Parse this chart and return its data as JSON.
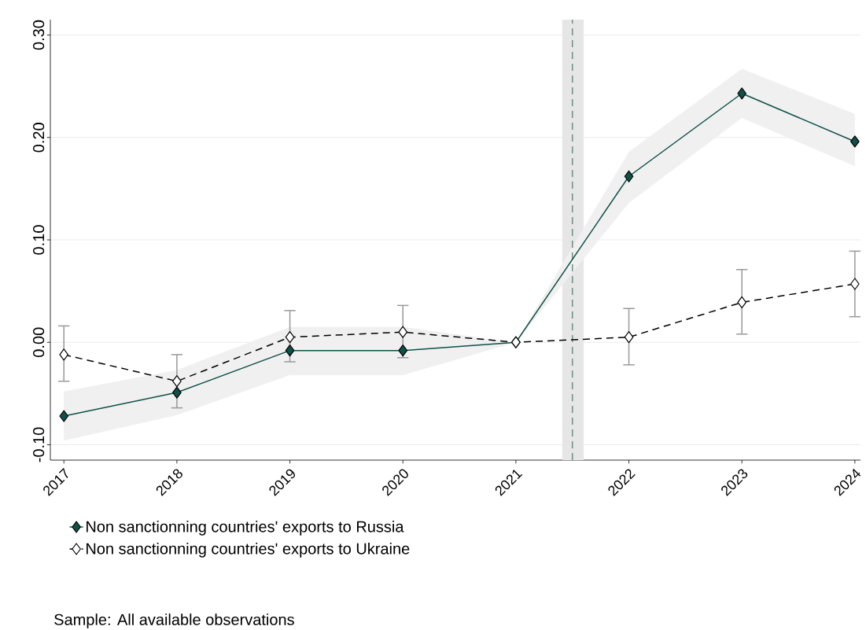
{
  "chart_data": {
    "type": "line",
    "x": [
      2017,
      2018,
      2019,
      2020,
      2021,
      2022,
      2023,
      2024
    ],
    "series": [
      {
        "name": "Non sanctionning countries' exports to Russia",
        "color": "#0f5048",
        "line_style": "solid",
        "values": [
          -0.072,
          -0.049,
          -0.008,
          -0.008,
          0.0,
          0.162,
          0.243,
          0.196
        ],
        "lower": [
          -0.096,
          -0.071,
          -0.032,
          -0.032,
          0.0,
          0.136,
          0.219,
          0.172
        ],
        "upper": [
          -0.048,
          -0.027,
          0.015,
          0.015,
          0.0,
          0.186,
          0.267,
          0.223
        ]
      },
      {
        "name": "Non sanctionning countries' exports to Ukraine",
        "color": "#000000",
        "line_style": "dashed",
        "values": [
          -0.012,
          -0.038,
          0.005,
          0.01,
          0.0,
          0.005,
          0.039,
          0.057
        ],
        "errors": [
          [
            -0.038,
            0.016
          ],
          [
            -0.064,
            -0.012
          ],
          [
            -0.019,
            0.031
          ],
          [
            -0.015,
            0.036
          ],
          null,
          [
            -0.022,
            0.033
          ],
          [
            0.008,
            0.071
          ],
          [
            0.025,
            0.089
          ]
        ]
      }
    ],
    "marker": "diamond",
    "grid": "y",
    "legend": "bottom",
    "xlim": [
      2016.88,
      2024.05
    ],
    "xticks": [
      2017,
      2018,
      2019,
      2020,
      2021,
      2022,
      2023,
      2024
    ],
    "ylim": [
      -0.115,
      0.315
    ],
    "yticks": [
      {
        "value": -0.1,
        "label": "-0.10"
      },
      {
        "value": 0.0,
        "label": "0.00"
      },
      {
        "value": 0.1,
        "label": "0.10"
      },
      {
        "value": 0.2,
        "label": "0.20"
      },
      {
        "value": 0.3,
        "label": "0.30"
      }
    ],
    "bands": [
      {
        "axis": "x",
        "from": 2021.41,
        "to": 2021.6,
        "color": "#e6e6e6"
      }
    ],
    "ref_lines": [
      {
        "axis": "x",
        "value": 2021.5,
        "color": "#6b8f86",
        "line_style": "dashed"
      }
    ],
    "annotations": [
      "Sample: All available observations"
    ]
  }
}
